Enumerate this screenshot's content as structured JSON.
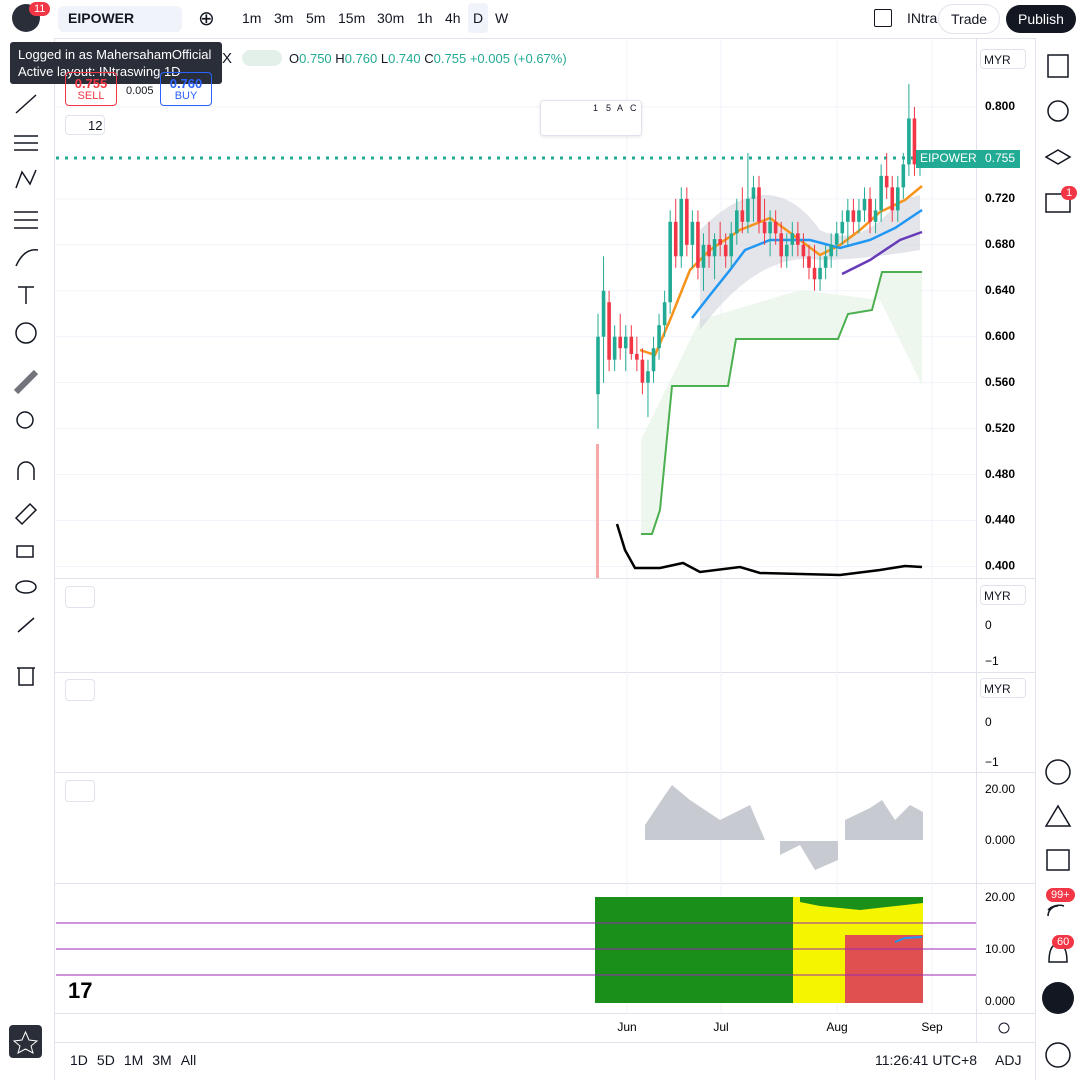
{
  "top_bar": {
    "badge": "11",
    "symbol": "EIPOWER",
    "intervals": [
      "1m",
      "3m",
      "5m",
      "15m",
      "30m",
      "1h",
      "4h",
      "D",
      "W"
    ],
    "layout": "INtra",
    "trade": "Trade",
    "publish": "Publish"
  },
  "tooltip": [
    "Logged in as MahersahamOfficial",
    "Active layout: INtraswing 1D"
  ],
  "legend": {
    "suffix": "X",
    "o_label": "O",
    "o": "0.750",
    "h_label": "H",
    "h": "0.760",
    "l_label": "L",
    "l": "0.740",
    "c_label": "C",
    "c": "0.755",
    "change": "+0.005 (+0.67%)"
  },
  "trade_box": {
    "sell_price": "0.755",
    "sell": "SELL",
    "spread": "0.005",
    "buy_price": "0.760",
    "buy": "BUY"
  },
  "indicator_count": "12",
  "drawing_widget": {
    "labels": [
      "1",
      "5",
      "A",
      "C"
    ]
  },
  "chart": {
    "type": "candlestick",
    "currency": "MYR",
    "ylim": [
      0.39,
      0.86
    ],
    "yticks": [
      {
        "value": 0.8,
        "label": "0.800"
      },
      {
        "value": 0.72,
        "label": "0.720"
      },
      {
        "value": 0.68,
        "label": "0.680"
      },
      {
        "value": 0.64,
        "label": "0.640"
      },
      {
        "value": 0.6,
        "label": "0.600"
      },
      {
        "value": 0.56,
        "label": "0.560"
      },
      {
        "value": 0.52,
        "label": "0.520"
      },
      {
        "value": 0.48,
        "label": "0.480"
      },
      {
        "value": 0.44,
        "label": "0.440"
      },
      {
        "value": 0.4,
        "label": "0.400"
      }
    ],
    "last_price": {
      "symbol": "EIPOWER",
      "value": 0.755
    },
    "candles": [
      [
        0.55,
        0.62,
        0.52,
        0.6
      ],
      [
        0.6,
        0.67,
        0.56,
        0.64
      ],
      [
        0.63,
        0.64,
        0.57,
        0.58
      ],
      [
        0.58,
        0.61,
        0.57,
        0.6
      ],
      [
        0.6,
        0.62,
        0.58,
        0.59
      ],
      [
        0.59,
        0.61,
        0.57,
        0.6
      ],
      [
        0.6,
        0.61,
        0.58,
        0.585
      ],
      [
        0.585,
        0.6,
        0.57,
        0.58
      ],
      [
        0.58,
        0.59,
        0.55,
        0.56
      ],
      [
        0.56,
        0.58,
        0.53,
        0.57
      ],
      [
        0.57,
        0.6,
        0.56,
        0.59
      ],
      [
        0.59,
        0.62,
        0.58,
        0.61
      ],
      [
        0.61,
        0.64,
        0.6,
        0.63
      ],
      [
        0.63,
        0.71,
        0.62,
        0.7
      ],
      [
        0.7,
        0.72,
        0.66,
        0.67
      ],
      [
        0.67,
        0.73,
        0.66,
        0.72
      ],
      [
        0.72,
        0.73,
        0.67,
        0.68
      ],
      [
        0.68,
        0.71,
        0.66,
        0.7
      ],
      [
        0.7,
        0.71,
        0.65,
        0.66
      ],
      [
        0.66,
        0.69,
        0.64,
        0.68
      ],
      [
        0.68,
        0.7,
        0.66,
        0.67
      ],
      [
        0.67,
        0.69,
        0.65,
        0.685
      ],
      [
        0.685,
        0.7,
        0.67,
        0.68
      ],
      [
        0.68,
        0.69,
        0.66,
        0.67
      ],
      [
        0.67,
        0.7,
        0.66,
        0.69
      ],
      [
        0.69,
        0.72,
        0.68,
        0.71
      ],
      [
        0.71,
        0.73,
        0.69,
        0.7
      ],
      [
        0.7,
        0.76,
        0.69,
        0.72
      ],
      [
        0.72,
        0.74,
        0.7,
        0.73
      ],
      [
        0.73,
        0.74,
        0.69,
        0.7
      ],
      [
        0.7,
        0.72,
        0.68,
        0.69
      ],
      [
        0.69,
        0.71,
        0.67,
        0.7
      ],
      [
        0.7,
        0.71,
        0.68,
        0.69
      ],
      [
        0.69,
        0.7,
        0.66,
        0.67
      ],
      [
        0.67,
        0.69,
        0.66,
        0.68
      ],
      [
        0.68,
        0.7,
        0.67,
        0.69
      ],
      [
        0.69,
        0.7,
        0.67,
        0.68
      ],
      [
        0.68,
        0.69,
        0.66,
        0.67
      ],
      [
        0.67,
        0.68,
        0.65,
        0.66
      ],
      [
        0.66,
        0.68,
        0.64,
        0.65
      ],
      [
        0.65,
        0.67,
        0.64,
        0.66
      ],
      [
        0.66,
        0.68,
        0.65,
        0.67
      ],
      [
        0.67,
        0.69,
        0.66,
        0.68
      ],
      [
        0.68,
        0.7,
        0.67,
        0.69
      ],
      [
        0.69,
        0.71,
        0.68,
        0.7
      ],
      [
        0.7,
        0.72,
        0.68,
        0.71
      ],
      [
        0.71,
        0.72,
        0.69,
        0.7
      ],
      [
        0.7,
        0.72,
        0.69,
        0.71
      ],
      [
        0.71,
        0.73,
        0.7,
        0.72
      ],
      [
        0.72,
        0.73,
        0.69,
        0.7
      ],
      [
        0.7,
        0.72,
        0.69,
        0.71
      ],
      [
        0.71,
        0.75,
        0.7,
        0.74
      ],
      [
        0.74,
        0.76,
        0.72,
        0.73
      ],
      [
        0.73,
        0.74,
        0.7,
        0.71
      ],
      [
        0.71,
        0.74,
        0.7,
        0.73
      ],
      [
        0.73,
        0.76,
        0.72,
        0.75
      ],
      [
        0.75,
        0.82,
        0.74,
        0.79
      ],
      [
        0.79,
        0.8,
        0.74,
        0.75
      ],
      [
        0.75,
        0.76,
        0.74,
        0.755
      ]
    ]
  },
  "panes": [
    {
      "currency": "MYR",
      "ticks": [
        "0",
        "−1"
      ]
    },
    {
      "currency": "MYR",
      "ticks": [
        "0",
        "−1"
      ]
    },
    {
      "ticks": [
        "20.00",
        "0.000"
      ]
    },
    {
      "ticks": [
        "20.00",
        "10.00",
        "0.000"
      ]
    }
  ],
  "time_axis": {
    "labels": [
      "Jun",
      "Jul",
      "Aug",
      "Sep"
    ]
  },
  "bottom_bar": {
    "ranges": [
      "1D",
      "5D",
      "1M",
      "3M",
      "All"
    ],
    "clock": "11:26:41 UTC+8",
    "adj": "ADJ"
  },
  "right_badges": {
    "alerts": "1",
    "feed": "99+",
    "notifications": "60"
  }
}
